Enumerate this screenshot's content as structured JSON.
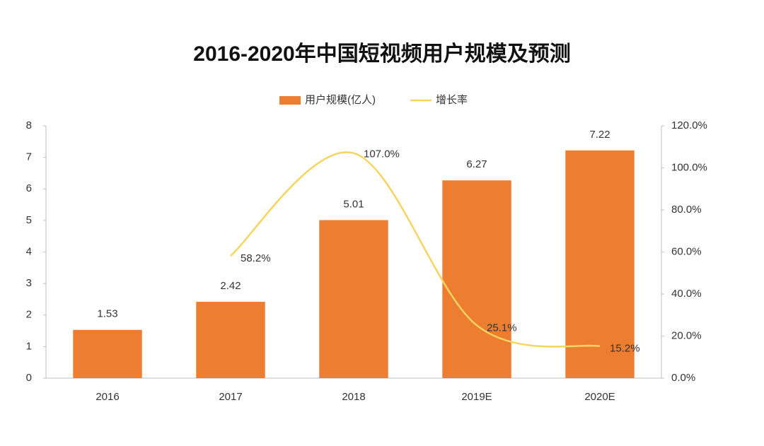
{
  "chart_data": {
    "type": "bar",
    "title": "2016-2020年中国短视频用户规模及预测",
    "categories": [
      "2016",
      "2017",
      "2018",
      "2019E",
      "2020E"
    ],
    "series": [
      {
        "name": "用户规模(亿人)",
        "color": "#ed7d31",
        "type": "bar",
        "values": [
          1.53,
          2.42,
          5.01,
          6.27,
          7.22
        ]
      },
      {
        "name": "增长率",
        "color": "#f5d55f",
        "type": "line",
        "axis": "y2",
        "values": [
          null,
          58.2,
          107.0,
          25.1,
          15.2
        ],
        "value_labels": [
          null,
          "58.2%",
          "107.0%",
          "25.1%",
          "15.2%"
        ]
      }
    ],
    "ylim": [
      0,
      8
    ],
    "yticks": [
      0,
      1,
      2,
      3,
      4,
      5,
      6,
      7,
      8
    ],
    "y2lim": [
      0,
      120
    ],
    "y2ticks": [
      {
        "value": 0,
        "label": "0.0%"
      },
      {
        "value": 20,
        "label": "20.0%"
      },
      {
        "value": 40,
        "label": "40.0%"
      },
      {
        "value": 60,
        "label": "60.0%"
      },
      {
        "value": 80,
        "label": "80.0%"
      },
      {
        "value": 100,
        "label": "100.0%"
      },
      {
        "value": 120,
        "label": "120.0%"
      }
    ],
    "legend": "top"
  }
}
